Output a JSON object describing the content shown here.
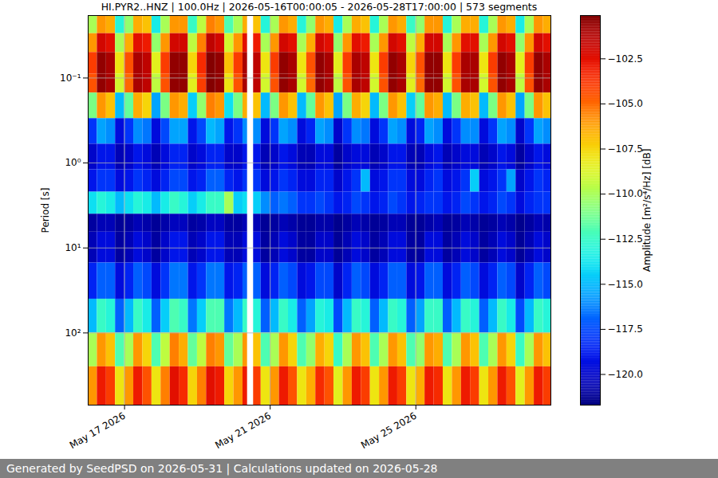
{
  "chart_data": {
    "type": "heatmap",
    "title": "HI.PYR2..HNZ | 100.0Hz | 2026-05-16T00:00:05 - 2026-05-28T17:00:00 | 573 segments",
    "caption": "Generated by SeedPSD on 2026-05-31 | Calculations updated on 2026-05-28",
    "y_label": "Period [s]",
    "color": "jet",
    "log": "y",
    "grid": true,
    "xlim": [
      "2026-05-16T00:00:05Z",
      "2026-05-28T17:00:00Z"
    ],
    "xticks": [
      {
        "value": "2026-05-17T00:00:00Z",
        "label": "May 17 2026"
      },
      {
        "value": "2026-05-21T00:00:00Z",
        "label": "May 21 2026"
      },
      {
        "value": "2026-05-25T00:00:00Z",
        "label": "May 25 2026"
      }
    ],
    "ylim": [
      0.0184,
      707
    ],
    "yticks": [
      {
        "value": 0.1,
        "label": "10⁻¹"
      },
      {
        "value": 1,
        "label": "10⁰"
      },
      {
        "value": 10,
        "label": "10¹"
      },
      {
        "value": 100,
        "label": "10²"
      }
    ],
    "x_edges": [
      "2026-05-16T00:00:05Z",
      "2026-05-16T06:00:00Z",
      "2026-05-16T12:00:00Z",
      "2026-05-16T18:00:00Z",
      "2026-05-17T00:00:00Z",
      "2026-05-17T06:00:00Z",
      "2026-05-17T12:00:00Z",
      "2026-05-17T18:00:00Z",
      "2026-05-18T00:00:00Z",
      "2026-05-18T06:00:00Z",
      "2026-05-18T12:00:00Z",
      "2026-05-18T18:00:00Z",
      "2026-05-19T00:00:00Z",
      "2026-05-19T06:00:00Z",
      "2026-05-19T12:00:00Z",
      "2026-05-19T18:00:00Z",
      "2026-05-20T00:00:00Z",
      "2026-05-20T06:00:00Z",
      "2026-05-20T09:00:00Z",
      "2026-05-20T13:00:00Z",
      "2026-05-20T18:00:00Z",
      "2026-05-21T00:00:00Z",
      "2026-05-21T06:00:00Z",
      "2026-05-21T12:00:00Z",
      "2026-05-21T18:00:00Z",
      "2026-05-22T00:00:00Z",
      "2026-05-22T06:00:00Z",
      "2026-05-22T12:00:00Z",
      "2026-05-22T18:00:00Z",
      "2026-05-23T00:00:00Z",
      "2026-05-23T06:00:00Z",
      "2026-05-23T12:00:00Z",
      "2026-05-23T18:00:00Z",
      "2026-05-24T00:00:00Z",
      "2026-05-24T06:00:00Z",
      "2026-05-24T12:00:00Z",
      "2026-05-24T18:00:00Z",
      "2026-05-25T00:00:00Z",
      "2026-05-25T06:00:00Z",
      "2026-05-25T12:00:00Z",
      "2026-05-25T18:00:00Z",
      "2026-05-26T00:00:00Z",
      "2026-05-26T06:00:00Z",
      "2026-05-26T12:00:00Z",
      "2026-05-26T18:00:00Z",
      "2026-05-27T00:00:00Z",
      "2026-05-27T06:00:00Z",
      "2026-05-27T12:00:00Z",
      "2026-05-27T18:00:00Z",
      "2026-05-28T00:00:00Z",
      "2026-05-28T06:00:00Z",
      "2026-05-28T12:00:00Z",
      "2026-05-28T17:00:00Z"
    ],
    "y_edges": [
      0.0184,
      0.03,
      0.05,
      0.09,
      0.15,
      0.3,
      0.6,
      1.2,
      2.2,
      4,
      6.5,
      15,
      40,
      100,
      250,
      707
    ],
    "z": [
      [
        -110,
        -106,
        -106.5,
        -113,
        -110.5,
        -106.5,
        -107,
        -113.5,
        -110,
        -106,
        -106,
        -112.5,
        -109.5,
        -105.5,
        -106,
        -112,
        -110,
        -106.5,
        null,
        -107,
        -113,
        -110,
        -106,
        -106.5,
        -113,
        -110.5,
        -106,
        -106.5,
        -113.5,
        -110,
        -106.5,
        -107,
        -113,
        -110,
        -106,
        -106.5,
        -112.5,
        -110.5,
        -106,
        -106,
        -113,
        -110,
        -106.5,
        -106.5,
        -113,
        -110,
        -106,
        -106.5,
        -113.5,
        -110,
        -106,
        -106.5
      ],
      [
        -106,
        -102,
        -102.5,
        -110,
        -106.5,
        -102.5,
        -103,
        -110.5,
        -106,
        -102,
        -102,
        -109.5,
        -105.5,
        -101.5,
        -102,
        -109,
        -106,
        -102.5,
        null,
        -103,
        -110,
        -106,
        -102,
        -102.5,
        -110,
        -106.5,
        -102,
        -102.5,
        -110.5,
        -106,
        -102.5,
        -103,
        -110,
        -106,
        -102,
        -102.5,
        -109.5,
        -106.5,
        -102,
        -102,
        -110,
        -106,
        -102.5,
        -102.5,
        -110,
        -106,
        -102,
        -102.5,
        -110.5,
        -106,
        -102,
        -102.5
      ],
      [
        -104,
        -100.5,
        -101,
        -108,
        -104.5,
        -101,
        -101.5,
        -108.5,
        -104,
        -100.5,
        -100.5,
        -107.5,
        -103.5,
        -100.2,
        -100.5,
        -107,
        -104,
        -101,
        null,
        -101.5,
        -108,
        -104,
        -100.5,
        -101,
        -108,
        -104.5,
        -100.5,
        -101,
        -108.5,
        -104,
        -101,
        -101.5,
        -108,
        -104,
        -100.5,
        -101,
        -107.5,
        -104.5,
        -100.5,
        -100.5,
        -108,
        -104,
        -101,
        -101,
        -108,
        -104,
        -100.5,
        -101,
        -108.5,
        -104,
        -100.5,
        -101
      ],
      [
        -104.5,
        -100.5,
        -101,
        -109,
        -105,
        -101,
        -101.5,
        -109.5,
        -104.5,
        -100.5,
        -100.5,
        -108.5,
        -104,
        -100.2,
        -100.5,
        -108,
        -104.5,
        -101,
        null,
        -101.5,
        -109,
        -104.5,
        -100.5,
        -101,
        -109,
        -105,
        -100.5,
        -101,
        -109.5,
        -104.5,
        -101,
        -101.5,
        -109,
        -104.5,
        -100.5,
        -101,
        -108.5,
        -105,
        -100.5,
        -100.5,
        -109,
        -104.5,
        -101,
        -101,
        -109,
        -104.5,
        -100.5,
        -101,
        -109.5,
        -104.5,
        -100.5,
        -101
      ],
      [
        -111,
        -106,
        -107,
        -115,
        -111.5,
        -106.5,
        -107.5,
        -115.5,
        -111,
        -106,
        -106.5,
        -114.5,
        -110.5,
        -105.5,
        -106,
        -114,
        -111,
        -106.5,
        null,
        -107,
        -115,
        -111,
        -106,
        -107,
        -115,
        -111.5,
        -106,
        -107,
        -115.5,
        -111,
        -106.5,
        -107.5,
        -115,
        -111,
        -106,
        -107,
        -114.5,
        -111.5,
        -106,
        -106.5,
        -115,
        -111,
        -106.5,
        -107,
        -115,
        -111,
        -106,
        -107,
        -115.5,
        -111,
        -106,
        -107
      ],
      [
        -118,
        -115.5,
        -116,
        -119.5,
        -118,
        -116,
        -116.5,
        -119.5,
        -117.5,
        -115.5,
        -115.5,
        -119,
        -117.5,
        -115,
        -115.5,
        -119,
        -118,
        -116,
        null,
        -116,
        -119.5,
        -118,
        -115.5,
        -116,
        -119.5,
        -118.5,
        -115.5,
        -116,
        -120,
        -118,
        -116,
        -116.5,
        -119.5,
        -118,
        -115.5,
        -116,
        -119.5,
        -118.5,
        -115.5,
        -116,
        -119.5,
        -118,
        -116,
        -116,
        -119.5,
        -118,
        -115.5,
        -116,
        -120,
        -118,
        -115.5,
        -116
      ],
      [
        -120,
        -119,
        -119,
        -120.5,
        -120,
        -119,
        -119.5,
        -120.5,
        -119.5,
        -118.5,
        -118.5,
        -120,
        -119.5,
        -118.5,
        -118.5,
        -120,
        -120,
        -119,
        null,
        -119,
        -120.5,
        -120,
        -119,
        -119.5,
        -120.5,
        -120.5,
        -119.5,
        -119.5,
        -121,
        -120,
        -119.5,
        -119.5,
        -120.5,
        -120,
        -119,
        -119,
        -120.5,
        -120.5,
        -119.5,
        -119,
        -120.5,
        -120,
        -119.5,
        -119.5,
        -120.5,
        -120,
        -119,
        -119.5,
        -121,
        -120,
        -119,
        -119.5
      ],
      [
        -119,
        -118,
        -118,
        -119.5,
        -119,
        -118,
        -118.5,
        -119.5,
        -118.5,
        -117.5,
        -117.5,
        -119,
        -118.5,
        -117,
        -117,
        -118.5,
        -119,
        -118,
        null,
        -118,
        -119.5,
        -119,
        -118,
        -118.5,
        -119.5,
        -119.5,
        -118.5,
        -118.5,
        -120,
        -119,
        -118,
        -115,
        -119.5,
        -119,
        -118,
        -118,
        -119.5,
        -119.5,
        -118.5,
        -118,
        -119.5,
        -119,
        -118,
        -114.5,
        -119.5,
        -119,
        -118,
        -115.5,
        -120,
        -119,
        -118,
        -118.5
      ],
      [
        -114,
        -113,
        -113.5,
        -115,
        -114,
        -113,
        -113.5,
        -115,
        -113.5,
        -112.5,
        -113,
        -114.5,
        -113.5,
        -112.5,
        -112.5,
        -110,
        -114.5,
        -114,
        null,
        -114.5,
        -116,
        -117,
        -116.5,
        -117,
        -118,
        -118,
        -117.5,
        -118,
        -119,
        -118.5,
        -117.5,
        -118,
        -119,
        -118.5,
        -117.5,
        -118,
        -119,
        -118.5,
        -118,
        -118,
        -119,
        -118.5,
        -117.5,
        -118,
        -119,
        -118.5,
        -117.5,
        -118,
        -119.5,
        -118.5,
        -118,
        -118
      ],
      [
        -121,
        -120.5,
        -120.5,
        -121.2,
        -121,
        -120.5,
        -120.8,
        -121.2,
        -120.8,
        -120.3,
        -120.3,
        -121,
        -120.8,
        -120.2,
        -120.2,
        -121,
        -121,
        -120.5,
        null,
        -120.5,
        -121.2,
        -121,
        -120.5,
        -120.8,
        -121.2,
        -121.2,
        -120.8,
        -120.8,
        -121.4,
        -121,
        -120.5,
        -120.8,
        -121.2,
        -121,
        -120.5,
        -120.5,
        -121.2,
        -121.2,
        -120.8,
        -120.5,
        -121.2,
        -121,
        -120.5,
        -120.8,
        -121.2,
        -121,
        -120.5,
        -120.8,
        -121.4,
        -121,
        -120.5,
        -120.8
      ],
      [
        -120.5,
        -119.5,
        -119.5,
        -121,
        -120.5,
        -119.5,
        -120,
        -121,
        -120,
        -119,
        -119,
        -120.5,
        -120,
        -119,
        -119,
        -120.5,
        -120.5,
        -119.5,
        null,
        -119.5,
        -121,
        -120.5,
        -119.5,
        -120,
        -121,
        -121,
        -120,
        -120,
        -121.2,
        -120.5,
        -119.5,
        -120,
        -121,
        -120.5,
        -119.5,
        -119.5,
        -121,
        -121,
        -119.5,
        -119.5,
        -121,
        -120.5,
        -119.5,
        -120,
        -121,
        -120.5,
        -119.5,
        -120,
        -121.2,
        -120.5,
        -119.5,
        -120
      ],
      [
        -118.5,
        -117,
        -117,
        -119.5,
        -118.5,
        -117,
        -117.5,
        -119.5,
        -118,
        -116.5,
        -116.5,
        -119,
        -118,
        -116.5,
        -116.5,
        -119,
        -118.5,
        -117,
        null,
        -117,
        -119.5,
        -118.5,
        -117,
        -117.5,
        -119.5,
        -119,
        -117.5,
        -117.5,
        -120,
        -118.5,
        -117,
        -117.5,
        -119.5,
        -118.5,
        -117,
        -117,
        -119.5,
        -119,
        -117,
        -117,
        -119.5,
        -118.5,
        -117,
        -117.5,
        -119.5,
        -118.5,
        -117,
        -117.5,
        -120,
        -118.5,
        -117,
        -117.5
      ],
      [
        -115,
        -112.5,
        -113,
        -117,
        -115,
        -112.5,
        -113.5,
        -117,
        -114.5,
        -112,
        -112.5,
        -116.5,
        -114.5,
        -112,
        -112,
        -116.5,
        -115,
        -112.5,
        null,
        -113,
        -117,
        -115,
        -112.5,
        -113.5,
        -117,
        -115.5,
        -113,
        -113.5,
        -117.5,
        -115,
        -112.5,
        -113,
        -117,
        -115,
        -112.5,
        -113,
        -117,
        -115.5,
        -112.5,
        -112.5,
        -117,
        -115,
        -112.5,
        -113,
        -117,
        -115,
        -112.5,
        -113.5,
        -117.5,
        -115,
        -112.5,
        -113
      ],
      [
        -110,
        -106,
        -107,
        -112,
        -110,
        -106,
        -107.5,
        -112,
        -109.5,
        -105.5,
        -106.5,
        -111.5,
        -109.5,
        -105.5,
        -106,
        -111.5,
        -110,
        -106,
        null,
        -107,
        -112,
        -110,
        -106,
        -107.5,
        -112,
        -110.5,
        -106.5,
        -107.5,
        -112.5,
        -110,
        -106,
        -107,
        -112,
        -110,
        -106,
        -107,
        -112,
        -110.5,
        -106,
        -106.5,
        -112,
        -110,
        -106,
        -107,
        -112,
        -110,
        -106,
        -107.5,
        -112.5,
        -110,
        -106,
        -107
      ],
      [
        -106,
        -103,
        -104,
        -108,
        -106,
        -103,
        -104.5,
        -108,
        -105.5,
        -102.5,
        -103.5,
        -107.5,
        -105.5,
        -102.5,
        -103,
        -107.5,
        -106,
        -103,
        null,
        -104,
        -108,
        -106,
        -103,
        -104.5,
        -108,
        -106.5,
        -103.5,
        -104.5,
        -108.5,
        -106,
        -103,
        -104,
        -108,
        -106,
        -103,
        -104,
        -108,
        -106.5,
        -103,
        -103.5,
        -108,
        -106,
        -103,
        -104,
        -108,
        -106,
        -103,
        -104.5,
        -108.5,
        -106,
        -103,
        -104
      ]
    ],
    "colorbar": {
      "label": "Amplitude [m²/s⁴/Hz] [dB]",
      "range": [
        -121.7,
        -100.1
      ],
      "ticks": [
        {
          "value": -120,
          "label": "−120.0"
        },
        {
          "value": -117.5,
          "label": "−117.5"
        },
        {
          "value": -115,
          "label": "−115.0"
        },
        {
          "value": -112.5,
          "label": "−112.5"
        },
        {
          "value": -110,
          "label": "−110.0"
        },
        {
          "value": -107.5,
          "label": "−107.5"
        },
        {
          "value": -105,
          "label": "−105.0"
        },
        {
          "value": -102.5,
          "label": "−102.5"
        }
      ]
    }
  }
}
